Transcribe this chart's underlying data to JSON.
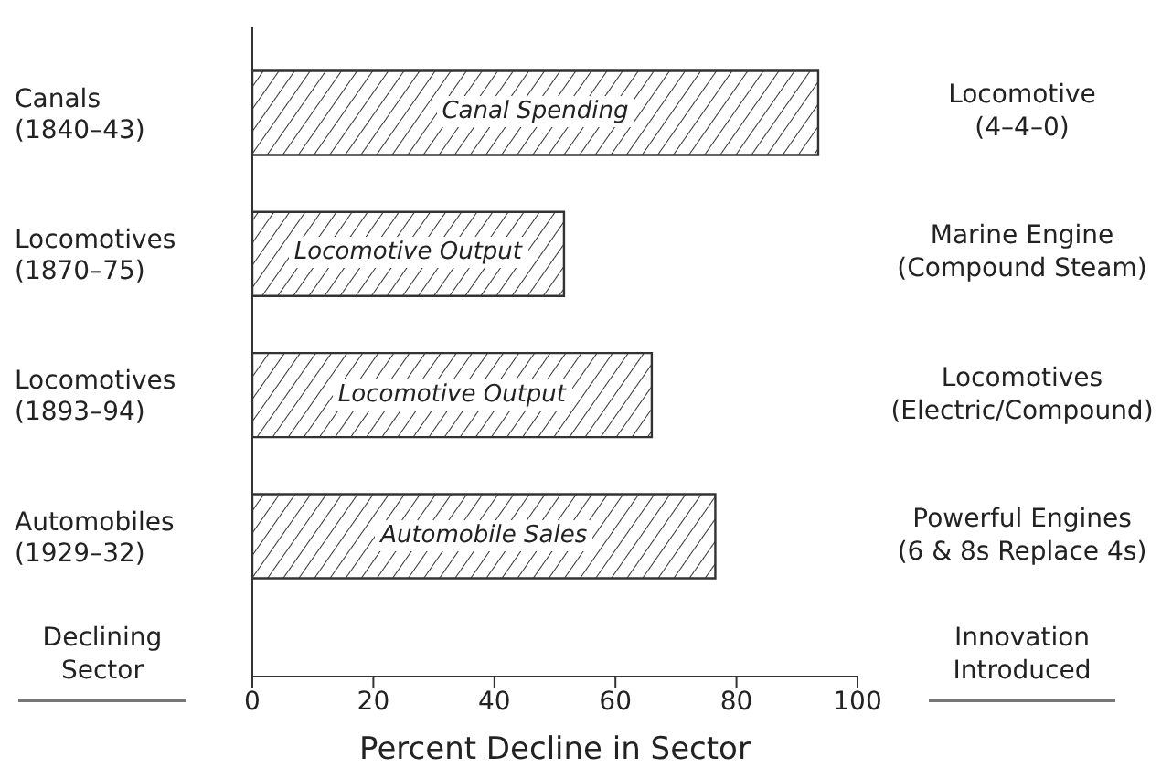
{
  "chart_data": {
    "type": "bar",
    "orientation": "horizontal",
    "categories": [
      "Canals\n(1840–43)",
      "Locomotives\n(1870–75)",
      "Locomotives\n(1893–94)",
      "Automobiles\n(1929–32)"
    ],
    "values": [
      93.5,
      51.5,
      66,
      76.5
    ],
    "color": "#333333",
    "xlim": [
      0,
      100
    ],
    "xticks": [
      0,
      20,
      40,
      60,
      80,
      100
    ],
    "xlabel": "Percent Decline in Sector",
    "ylabel": "Declining\nSector",
    "y2label": "Innovation\nIntroduced",
    "annotations": [
      "Canal Spending",
      "Locomotive Output",
      "Locomotive Output",
      "Automobile Sales",
      "Locomotive\n(4–4–0)",
      "Marine Engine\n(Compound Steam)",
      "Locomotives\n(Electric/Compound)",
      "Powerful Engines\n(6 & 8s Replace 4s)"
    ]
  }
}
